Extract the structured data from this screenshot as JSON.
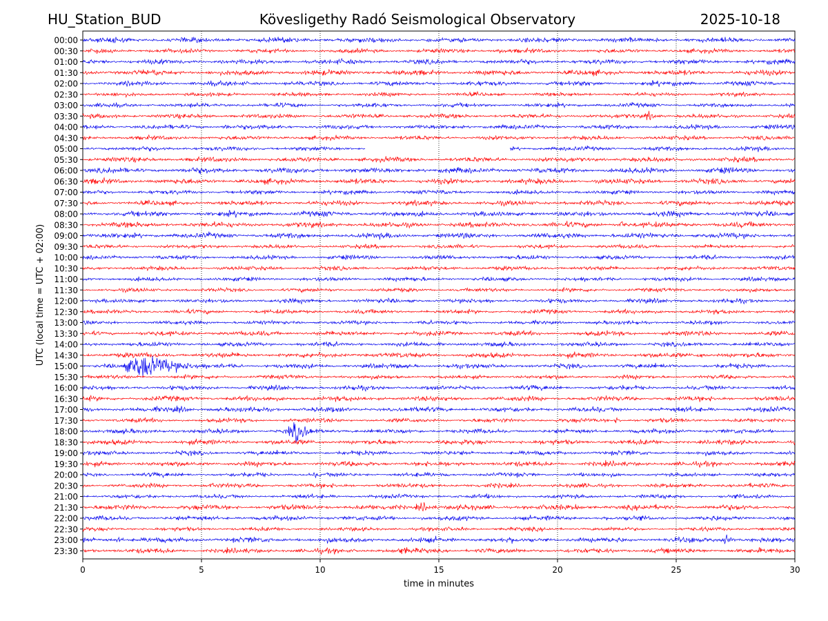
{
  "header": {
    "station": "HU_Station_BUD",
    "observatory": "Kövesligethy Radó Seismological Observatory",
    "date": "2025-10-18"
  },
  "chart_data": {
    "type": "line",
    "title": "Kövesligethy Radó Seismological Observatory",
    "xlabel": "time in minutes",
    "ylabel": "UTC (local time = UTC + 02:00)",
    "xlim": [
      0,
      30
    ],
    "xticks": [
      0,
      5,
      10,
      15,
      20,
      25,
      30
    ],
    "vertical_gridlines": [
      5,
      10,
      15,
      20,
      25
    ],
    "row_labels": [
      "00:00",
      "00:30",
      "01:00",
      "01:30",
      "02:00",
      "02:30",
      "03:00",
      "03:30",
      "04:00",
      "04:30",
      "05:00",
      "05:30",
      "06:00",
      "06:30",
      "07:00",
      "07:30",
      "08:00",
      "08:30",
      "09:00",
      "09:30",
      "10:00",
      "10:30",
      "11:00",
      "11:30",
      "12:00",
      "12:30",
      "13:00",
      "13:30",
      "14:00",
      "14:30",
      "15:00",
      "15:30",
      "16:00",
      "16:30",
      "17:00",
      "17:30",
      "18:00",
      "18:30",
      "19:00",
      "19:30",
      "20:00",
      "20:30",
      "21:00",
      "21:30",
      "22:00",
      "22:30",
      "23:00",
      "23:30"
    ],
    "trace_colors": [
      "#0000ee",
      "#ff0000"
    ],
    "data_gap": {
      "row": "05:00",
      "from_min": 11.9,
      "to_min": 18.0
    },
    "events": [
      {
        "row": "00:00",
        "min": 1.3,
        "amp": 1.6,
        "dur": 1.2
      },
      {
        "row": "00:00",
        "min": 26.7,
        "amp": 1.4,
        "dur": 1.0
      },
      {
        "row": "00:30",
        "min": 17.6,
        "amp": 1.8,
        "dur": 0.8
      },
      {
        "row": "00:30",
        "min": 26.9,
        "amp": 1.5,
        "dur": 0.5
      },
      {
        "row": "01:30",
        "min": 3.0,
        "amp": 1.6,
        "dur": 1.5
      },
      {
        "row": "01:30",
        "min": 21.0,
        "amp": 1.5,
        "dur": 1.0
      },
      {
        "row": "03:30",
        "min": 23.8,
        "amp": 2.4,
        "dur": 1.2
      },
      {
        "row": "04:00",
        "min": 6.0,
        "amp": 2.0,
        "dur": 0.8
      },
      {
        "row": "08:30",
        "min": 22.7,
        "amp": 1.8,
        "dur": 0.8
      },
      {
        "row": "09:00",
        "min": 27.5,
        "amp": 1.4,
        "dur": 1.5
      },
      {
        "row": "14:30",
        "min": 26.0,
        "amp": 1.4,
        "dur": 1.0
      },
      {
        "row": "15:00",
        "min": 2.6,
        "amp": 6.5,
        "dur": 4.0
      },
      {
        "row": "15:00",
        "min": 9.5,
        "amp": 1.6,
        "dur": 1.0
      },
      {
        "row": "17:00",
        "min": 4.0,
        "amp": 1.7,
        "dur": 1.5
      },
      {
        "row": "17:30",
        "min": 22.5,
        "amp": 1.5,
        "dur": 1.0
      },
      {
        "row": "18:00",
        "min": 9.0,
        "amp": 5.5,
        "dur": 1.8
      },
      {
        "row": "20:00",
        "min": 7.5,
        "amp": 1.7,
        "dur": 1.2
      },
      {
        "row": "20:00",
        "min": 9.8,
        "amp": 1.7,
        "dur": 0.8
      },
      {
        "row": "20:30",
        "min": 5.5,
        "amp": 2.0,
        "dur": 1.0
      },
      {
        "row": "21:30",
        "min": 14.3,
        "amp": 2.2,
        "dur": 1.5
      },
      {
        "row": "21:30",
        "min": 20.8,
        "amp": 1.6,
        "dur": 0.8
      },
      {
        "row": "22:30",
        "min": 16.0,
        "amp": 1.6,
        "dur": 0.5
      },
      {
        "row": "23:00",
        "min": 1.5,
        "amp": 1.5,
        "dur": 0.6
      },
      {
        "row": "23:00",
        "min": 27.1,
        "amp": 2.2,
        "dur": 0.8
      },
      {
        "row": "23:30",
        "min": 13.5,
        "amp": 2.0,
        "dur": 1.5
      }
    ]
  }
}
